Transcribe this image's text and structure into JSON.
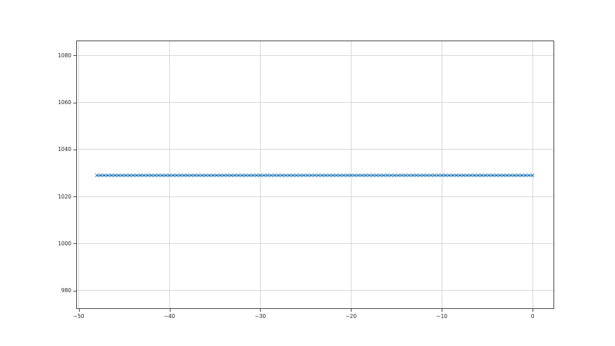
{
  "figure": {
    "background_color": "#ffffff",
    "spine_color": "#444444",
    "grid_color": "#d7d7d7",
    "tick_label_color": "#222222",
    "accent_color": "#1f77b4"
  },
  "chart_data": {
    "type": "line",
    "title": "",
    "xlabel": "",
    "ylabel": "",
    "grid": true,
    "legend": "none",
    "xlim": [
      -50.2,
      2.3
    ],
    "ylim": [
      972.5,
      1086
    ],
    "x_ticks": [
      -50,
      -40,
      -30,
      -20,
      -10,
      0
    ],
    "x_tick_labels": [
      "−50",
      "−40",
      "−30",
      "−20",
      "−10",
      "0"
    ],
    "y_ticks": [
      980,
      1000,
      1020,
      1040,
      1060,
      1080
    ],
    "y_tick_labels": [
      "980",
      "1000",
      "1020",
      "1040",
      "1060",
      "1080"
    ],
    "series": [
      {
        "name": "series-0",
        "marker": "x",
        "marker_size": 2.3,
        "linestyle": "solid",
        "color": "#1f77b4",
        "y_constant": 1029,
        "x": [
          -48,
          -47.6,
          -47.2,
          -46.8,
          -46.4,
          -46,
          -45.6,
          -45.2,
          -44.8,
          -44.4,
          -44,
          -43.6,
          -43.2,
          -42.8,
          -42.4,
          -42,
          -41.6,
          -41.2,
          -40.8,
          -40.4,
          -40,
          -39.6,
          -39.2,
          -38.8,
          -38.4,
          -38,
          -37.6,
          -37.2,
          -36.8,
          -36.4,
          -36,
          -35.6,
          -35.2,
          -34.8,
          -34.4,
          -34,
          -33.6,
          -33.2,
          -32.8,
          -32.4,
          -32,
          -31.6,
          -31.2,
          -30.8,
          -30.4,
          -30,
          -29.6,
          -29.2,
          -28.8,
          -28.4,
          -28,
          -27.6,
          -27.2,
          -26.8,
          -26.4,
          -26,
          -25.6,
          -25.2,
          -24.8,
          -24.4,
          -24,
          -23.6,
          -23.2,
          -22.8,
          -22.4,
          -22,
          -21.6,
          -21.2,
          -20.8,
          -20.4,
          -20,
          -19.6,
          -19.2,
          -18.8,
          -18.4,
          -18,
          -17.6,
          -17.2,
          -16.8,
          -16.4,
          -16,
          -15.6,
          -15.2,
          -14.8,
          -14.4,
          -14,
          -13.6,
          -13.2,
          -12.8,
          -12.4,
          -12,
          -11.6,
          -11.2,
          -10.8,
          -10.4,
          -10,
          -9.6,
          -9.2,
          -8.8,
          -8.4,
          -8,
          -7.6,
          -7.2,
          -6.8,
          -6.4,
          -6,
          -5.6,
          -5.2,
          -4.8,
          -4.4,
          -4,
          -3.6,
          -3.2,
          -2.8,
          -2.4,
          -2,
          -1.6,
          -1.2,
          -0.8,
          -0.4,
          0
        ]
      }
    ]
  }
}
